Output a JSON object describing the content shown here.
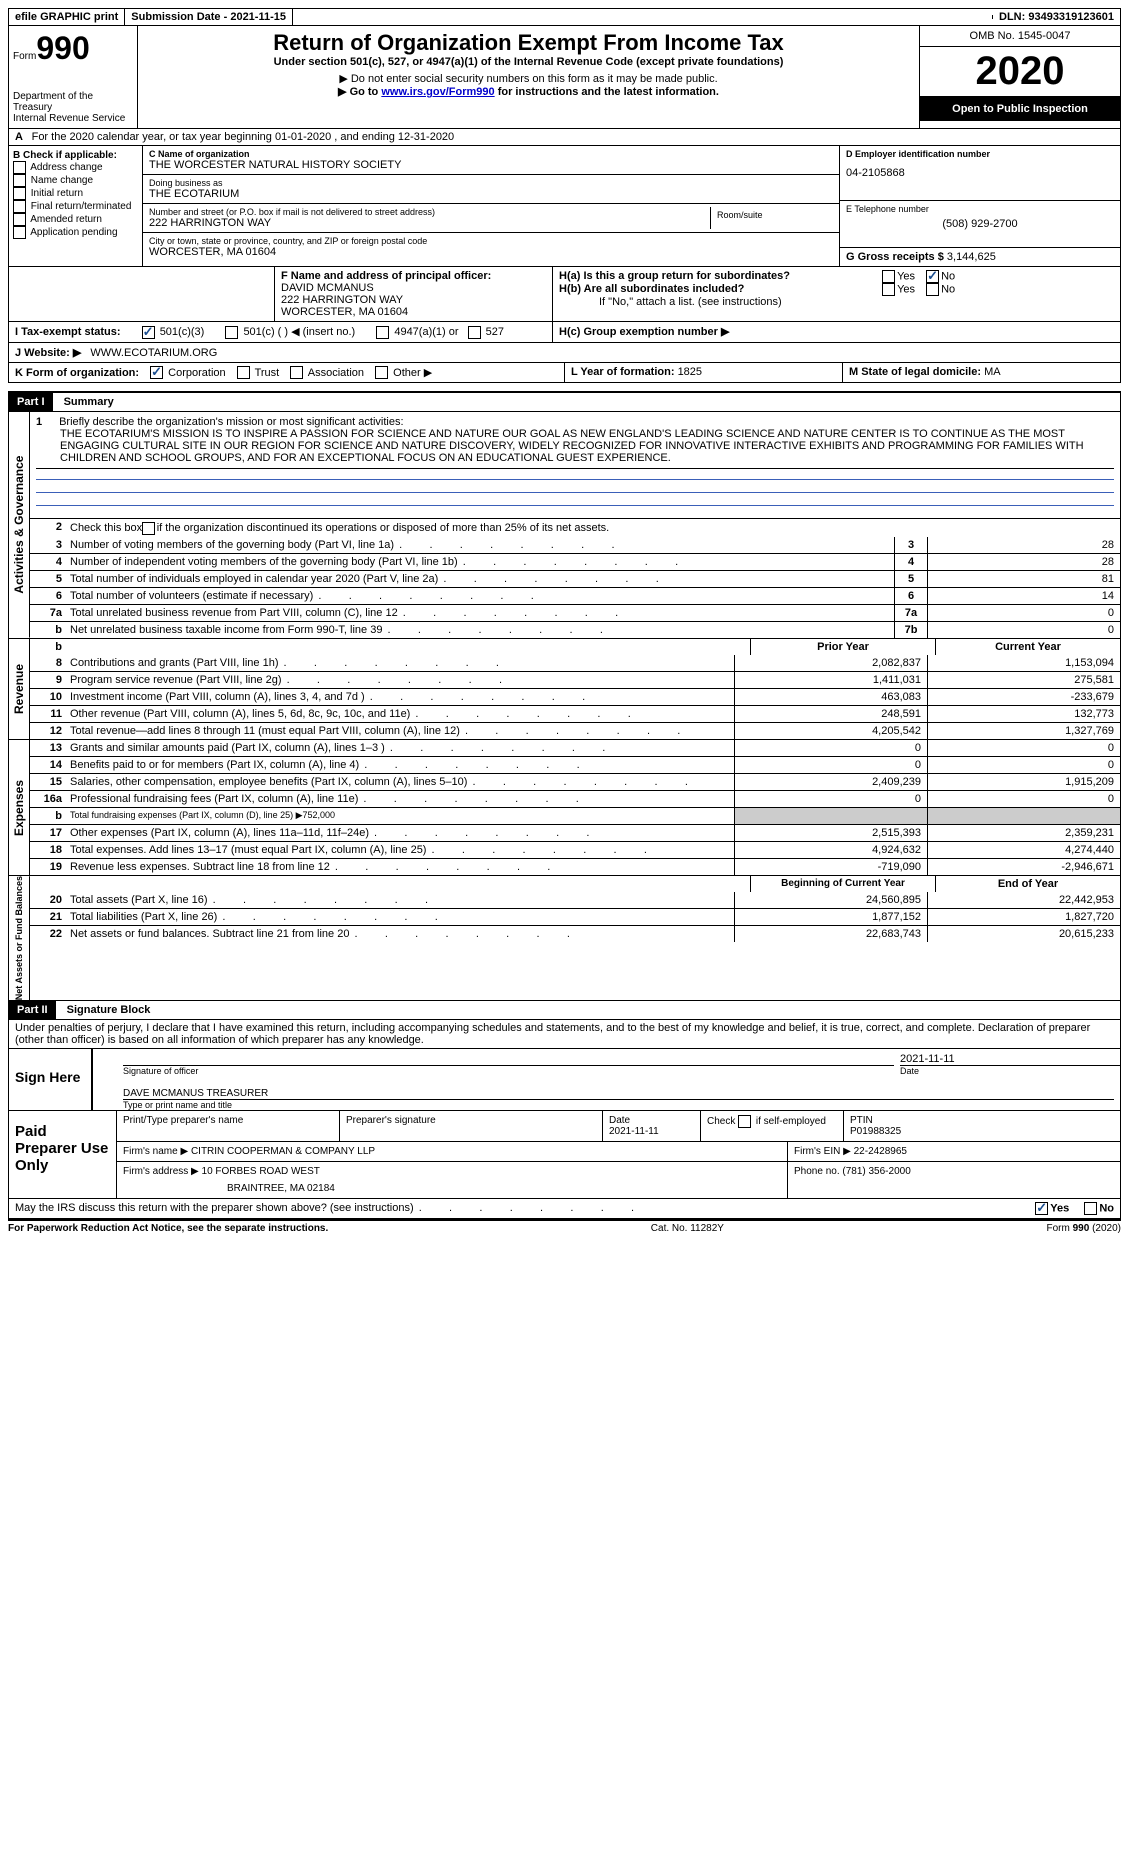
{
  "topbar": {
    "efile": "efile GRAPHIC print",
    "submission_label": "Submission Date - ",
    "submission_date": "2021-11-15",
    "dln_label": "DLN: ",
    "dln": "93493319123601"
  },
  "header": {
    "form_word": "Form",
    "form_num": "990",
    "dept": "Department of the Treasury\nInternal Revenue Service",
    "title": "Return of Organization Exempt From Income Tax",
    "subtitle": "Under section 501(c), 527, or 4947(a)(1) of the Internal Revenue Code (except private foundations)",
    "warn": "▶ Do not enter social security numbers on this form as it may be made public.",
    "goto_pre": "▶ Go to ",
    "goto_link": "www.irs.gov/Form990",
    "goto_post": " for instructions and the latest information.",
    "omb": "OMB No. 1545-0047",
    "year": "2020",
    "open": "Open to Public Inspection"
  },
  "sectionA": {
    "text": "For the 2020 calendar year, or tax year beginning 01-01-2020   , and ending 12-31-2020"
  },
  "boxB": {
    "label": "B Check if applicable:",
    "items": [
      "Address change",
      "Name change",
      "Initial return",
      "Final return/terminated",
      "Amended return",
      "Application pending"
    ]
  },
  "boxC": {
    "name_label": "C Name of organization",
    "name": "THE WORCESTER NATURAL HISTORY SOCIETY",
    "dba_label": "Doing business as",
    "dba": "THE ECOTARIUM",
    "addr_label": "Number and street (or P.O. box if mail is not delivered to street address)",
    "room_label": "Room/suite",
    "addr": "222 HARRINGTON WAY",
    "city_label": "City or town, state or province, country, and ZIP or foreign postal code",
    "city": "WORCESTER, MA  01604"
  },
  "boxD": {
    "label": "D Employer identification number",
    "val": "04-2105868"
  },
  "boxE": {
    "label": "E Telephone number",
    "val": "(508) 929-2700"
  },
  "boxG": {
    "label": "G Gross receipts $ ",
    "val": "3,144,625"
  },
  "boxF": {
    "label": "F  Name and address of principal officer:",
    "name": "DAVID MCMANUS",
    "addr1": "222 HARRINGTON WAY",
    "addr2": "WORCESTER, MA  01604"
  },
  "boxH": {
    "a": "H(a)  Is this a group return for subordinates?",
    "b": "H(b)  Are all subordinates included?",
    "b_note": "If \"No,\" attach a list. (see instructions)",
    "c": "H(c)  Group exemption number ▶"
  },
  "boxI": {
    "label": "I   Tax-exempt status:",
    "opts": [
      "501(c)(3)",
      "501(c) (  ) ◀ (insert no.)",
      "4947(a)(1) or",
      "527"
    ]
  },
  "boxJ": {
    "label": "J   Website: ▶",
    "val": "WWW.ECOTARIUM.ORG"
  },
  "boxK": {
    "label": "K Form of organization:",
    "opts": [
      "Corporation",
      "Trust",
      "Association",
      "Other ▶"
    ]
  },
  "boxL": {
    "label": "L Year of formation: ",
    "val": "1825"
  },
  "boxM": {
    "label": "M State of legal domicile: ",
    "val": "MA"
  },
  "part1": {
    "header": "Part I",
    "title": "Summary"
  },
  "summary": {
    "line1_label": "Briefly describe the organization's mission or most significant activities:",
    "line1_text": "THE ECOTARIUM'S MISSION IS TO INSPIRE A PASSION FOR SCIENCE AND NATURE OUR GOAL AS NEW ENGLAND'S LEADING SCIENCE AND NATURE CENTER IS TO CONTINUE AS THE MOST ENGAGING CULTURAL SITE IN OUR REGION FOR SCIENCE AND NATURE DISCOVERY, WIDELY RECOGNIZED FOR INNOVATIVE INTERACTIVE EXHIBITS AND PROGRAMMING FOR FAMILIES WITH CHILDREN AND SCHOOL GROUPS, AND FOR AN EXCEPTIONAL FOCUS ON AN EDUCATIONAL GUEST EXPERIENCE.",
    "line2": "Check this box ▶        if the organization discontinued its operations or disposed of more than 25% of its net assets.",
    "rows_gov": [
      {
        "n": "3",
        "t": "Number of voting members of the governing body (Part VI, line 1a)",
        "box": "3",
        "v": "28"
      },
      {
        "n": "4",
        "t": "Number of independent voting members of the governing body (Part VI, line 1b)",
        "box": "4",
        "v": "28"
      },
      {
        "n": "5",
        "t": "Total number of individuals employed in calendar year 2020 (Part V, line 2a)",
        "box": "5",
        "v": "81"
      },
      {
        "n": "6",
        "t": "Total number of volunteers (estimate if necessary)",
        "box": "6",
        "v": "14"
      },
      {
        "n": "7a",
        "t": "Total unrelated business revenue from Part VIII, column (C), line 12",
        "box": "7a",
        "v": "0"
      },
      {
        "n": "b",
        "t": "Net unrelated business taxable income from Form 990-T, line 39",
        "box": "7b",
        "v": "0"
      }
    ],
    "hdr_prior": "Prior Year",
    "hdr_current": "Current Year",
    "rows_rev": [
      {
        "n": "8",
        "t": "Contributions and grants (Part VIII, line 1h)",
        "p": "2,082,837",
        "c": "1,153,094"
      },
      {
        "n": "9",
        "t": "Program service revenue (Part VIII, line 2g)",
        "p": "1,411,031",
        "c": "275,581"
      },
      {
        "n": "10",
        "t": "Investment income (Part VIII, column (A), lines 3, 4, and 7d )",
        "p": "463,083",
        "c": "-233,679"
      },
      {
        "n": "11",
        "t": "Other revenue (Part VIII, column (A), lines 5, 6d, 8c, 9c, 10c, and 11e)",
        "p": "248,591",
        "c": "132,773"
      },
      {
        "n": "12",
        "t": "Total revenue—add lines 8 through 11 (must equal Part VIII, column (A), line 12)",
        "p": "4,205,542",
        "c": "1,327,769"
      }
    ],
    "rows_exp": [
      {
        "n": "13",
        "t": "Grants and similar amounts paid (Part IX, column (A), lines 1–3 )",
        "p": "0",
        "c": "0"
      },
      {
        "n": "14",
        "t": "Benefits paid to or for members (Part IX, column (A), line 4)",
        "p": "0",
        "c": "0"
      },
      {
        "n": "15",
        "t": "Salaries, other compensation, employee benefits (Part IX, column (A), lines 5–10)",
        "p": "2,409,239",
        "c": "1,915,209"
      },
      {
        "n": "16a",
        "t": "Professional fundraising fees (Part IX, column (A), line 11e)",
        "p": "0",
        "c": "0"
      },
      {
        "n": "b",
        "t": "Total fundraising expenses (Part IX, column (D), line 25) ▶752,000",
        "p": "",
        "c": "",
        "shaded": true,
        "small": true
      },
      {
        "n": "17",
        "t": "Other expenses (Part IX, column (A), lines 11a–11d, 11f–24e)",
        "p": "2,515,393",
        "c": "2,359,231"
      },
      {
        "n": "18",
        "t": "Total expenses. Add lines 13–17 (must equal Part IX, column (A), line 25)",
        "p": "4,924,632",
        "c": "4,274,440"
      },
      {
        "n": "19",
        "t": "Revenue less expenses. Subtract line 18 from line 12",
        "p": "-719,090",
        "c": "-2,946,671"
      }
    ],
    "hdr_begin": "Beginning of Current Year",
    "hdr_end": "End of Year",
    "rows_net": [
      {
        "n": "20",
        "t": "Total assets (Part X, line 16)",
        "p": "24,560,895",
        "c": "22,442,953"
      },
      {
        "n": "21",
        "t": "Total liabilities (Part X, line 26)",
        "p": "1,877,152",
        "c": "1,827,720"
      },
      {
        "n": "22",
        "t": "Net assets or fund balances. Subtract line 21 from line 20",
        "p": "22,683,743",
        "c": "20,615,233"
      }
    ],
    "vlabels": {
      "gov": "Activities & Governance",
      "rev": "Revenue",
      "exp": "Expenses",
      "net": "Net Assets or Fund Balances"
    }
  },
  "part2": {
    "header": "Part II",
    "title": "Signature Block"
  },
  "sig": {
    "penalty": "Under penalties of perjury, I declare that I have examined this return, including accompanying schedules and statements, and to the best of my knowledge and belief, it is true, correct, and complete. Declaration of preparer (other than officer) is based on all information of which preparer has any knowledge.",
    "sign_here": "Sign Here",
    "date": "2021-11-11",
    "sig_officer": "Signature of officer",
    "date_lbl": "Date",
    "name": "DAVE MCMANUS  TREASURER",
    "name_lbl": "Type or print name and title"
  },
  "prep": {
    "title": "Paid Preparer Use Only",
    "h_name": "Print/Type preparer's name",
    "h_sig": "Preparer's signature",
    "h_date": "Date",
    "date": "2021-11-11",
    "h_check": "Check         if self-employed",
    "h_ptin": "PTIN",
    "ptin": "P01988325",
    "firm_name_lbl": "Firm's name     ▶",
    "firm_name": "CITRIN COOPERMAN & COMPANY LLP",
    "firm_ein_lbl": "Firm's EIN ▶",
    "firm_ein": "22-2428965",
    "firm_addr_lbl": "Firm's address ▶",
    "firm_addr1": "10 FORBES ROAD WEST",
    "firm_addr2": "BRAINTREE, MA  02184",
    "phone_lbl": "Phone no. ",
    "phone": "(781) 356-2000"
  },
  "discuss": "May the IRS discuss this return with the preparer shown above? (see instructions)",
  "yes": "Yes",
  "no": "No",
  "footer": {
    "left": "For Paperwork Reduction Act Notice, see the separate instructions.",
    "mid": "Cat. No. 11282Y",
    "right": "Form 990 (2020)"
  }
}
